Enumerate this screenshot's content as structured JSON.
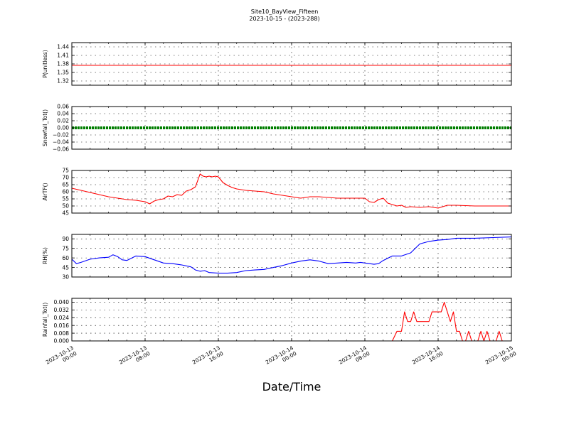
{
  "figure": {
    "title": "Site10_BayView_Fifteen",
    "subtitle": "2023-10-15 - (2023-288)",
    "xlabel": "Date/Time"
  },
  "chart_data": [
    {
      "type": "line",
      "ylabel": "P(unitless)",
      "ylim": [
        1.305,
        1.455
      ],
      "yticks": [
        "1.44",
        "1.41",
        "1.38",
        "1.35",
        "1.32"
      ],
      "ytick_values": [
        1.44,
        1.41,
        1.38,
        1.35,
        1.32
      ],
      "grid": true,
      "series": [
        {
          "color": "#ff0000",
          "marker": "line",
          "x": [
            "2023-10-13 00:00",
            "2023-10-15 00:00"
          ],
          "values": [
            1.375,
            1.375
          ]
        }
      ]
    },
    {
      "type": "line",
      "ylabel": "Snowfall_Tot()",
      "ylim": [
        -0.06,
        0.06
      ],
      "yticks": [
        "0.06",
        "0.04",
        "0.02",
        "0.00",
        "−0.02",
        "−0.04",
        "−0.06"
      ],
      "ytick_values": [
        0.06,
        0.04,
        0.02,
        0.0,
        -0.02,
        -0.04,
        -0.06
      ],
      "grid": true,
      "series": [
        {
          "color": "#007f00",
          "marker": "dots",
          "x": [
            "2023-10-13 00:00",
            "2023-10-15 00:00"
          ],
          "values": [
            0,
            0
          ]
        }
      ]
    },
    {
      "type": "line",
      "ylabel": "AirTF()",
      "ylim": [
        45,
        75
      ],
      "yticks": [
        "75",
        "70",
        "65",
        "60",
        "55",
        "50",
        "45"
      ],
      "ytick_values": [
        75,
        70,
        65,
        60,
        55,
        50,
        45
      ],
      "grid": true,
      "series": [
        {
          "color": "#ff0000",
          "marker": "line",
          "x": [
            "2023-10-13 00:00",
            "2023-10-13 01:00",
            "2023-10-13 02:00",
            "2023-10-13 03:00",
            "2023-10-13 04:00",
            "2023-10-13 05:00",
            "2023-10-13 06:00",
            "2023-10-13 07:00",
            "2023-10-13 08:00",
            "2023-10-13 08:30",
            "2023-10-13 09:00",
            "2023-10-13 09:30",
            "2023-10-13 10:00",
            "2023-10-13 10:30",
            "2023-10-13 11:00",
            "2023-10-13 11:30",
            "2023-10-13 12:00",
            "2023-10-13 12:30",
            "2023-10-13 13:00",
            "2023-10-13 13:30",
            "2023-10-13 14:00",
            "2023-10-13 14:20",
            "2023-10-13 14:40",
            "2023-10-13 15:00",
            "2023-10-13 15:20",
            "2023-10-13 15:40",
            "2023-10-13 16:00",
            "2023-10-13 16:30",
            "2023-10-13 17:00",
            "2023-10-13 17:30",
            "2023-10-13 18:00",
            "2023-10-13 19:00",
            "2023-10-13 20:00",
            "2023-10-13 21:00",
            "2023-10-13 22:00",
            "2023-10-14 00:00",
            "2023-10-14 01:00",
            "2023-10-14 02:00",
            "2023-10-14 03:00",
            "2023-10-14 04:00",
            "2023-10-14 05:00",
            "2023-10-14 06:00",
            "2023-10-14 07:00",
            "2023-10-14 08:00",
            "2023-10-14 08:30",
            "2023-10-14 09:00",
            "2023-10-14 09:30",
            "2023-10-14 10:00",
            "2023-10-14 10:30",
            "2023-10-14 11:00",
            "2023-10-14 11:30",
            "2023-10-14 12:00",
            "2023-10-14 12:30",
            "2023-10-14 13:00",
            "2023-10-14 14:00",
            "2023-10-14 15:00",
            "2023-10-14 16:00",
            "2023-10-14 17:00",
            "2023-10-14 18:00",
            "2023-10-14 20:00",
            "2023-10-14 22:00",
            "2023-10-15 00:00"
          ],
          "values": [
            62.5,
            61,
            59.5,
            58,
            56.5,
            55.5,
            54.5,
            54,
            53,
            51.5,
            53.5,
            54.5,
            55,
            57,
            56.5,
            58,
            57.5,
            60.5,
            61.5,
            63.5,
            72.5,
            71,
            70.5,
            71,
            70.5,
            71,
            70.5,
            66.5,
            64.5,
            63,
            62,
            61,
            60.5,
            60,
            58.5,
            56.5,
            55.5,
            56.5,
            56.5,
            56,
            55.5,
            55.5,
            55.5,
            55.5,
            53,
            52.5,
            54.5,
            55.5,
            52,
            51,
            50,
            50.5,
            49,
            49.5,
            49,
            49.5,
            48.5,
            50.5,
            50.5,
            50,
            50,
            50
          ]
        }
      ]
    },
    {
      "type": "line",
      "ylabel": "RH(%)",
      "ylim": [
        30,
        97
      ],
      "yticks": [
        "90",
        "75",
        "60",
        "45",
        "30"
      ],
      "ytick_values": [
        90,
        75,
        60,
        45,
        30
      ],
      "grid": true,
      "series": [
        {
          "color": "#0000ff",
          "marker": "line",
          "x": [
            "2023-10-13 00:00",
            "2023-10-13 00:30",
            "2023-10-13 01:00",
            "2023-10-13 02:00",
            "2023-10-13 03:00",
            "2023-10-13 04:00",
            "2023-10-13 04:30",
            "2023-10-13 05:00",
            "2023-10-13 05:30",
            "2023-10-13 06:00",
            "2023-10-13 07:00",
            "2023-10-13 08:00",
            "2023-10-13 09:00",
            "2023-10-13 10:00",
            "2023-10-13 11:00",
            "2023-10-13 12:00",
            "2023-10-13 13:00",
            "2023-10-13 13:30",
            "2023-10-13 14:00",
            "2023-10-13 14:30",
            "2023-10-13 15:00",
            "2023-10-13 16:00",
            "2023-10-13 17:00",
            "2023-10-13 18:00",
            "2023-10-13 19:00",
            "2023-10-13 20:00",
            "2023-10-13 21:00",
            "2023-10-13 22:00",
            "2023-10-13 23:00",
            "2023-10-14 00:00",
            "2023-10-14 01:00",
            "2023-10-14 02:00",
            "2023-10-14 03:00",
            "2023-10-14 04:00",
            "2023-10-14 05:00",
            "2023-10-14 06:00",
            "2023-10-14 07:00",
            "2023-10-14 07:30",
            "2023-10-14 08:00",
            "2023-10-14 09:00",
            "2023-10-14 09:30",
            "2023-10-14 10:00",
            "2023-10-14 11:00",
            "2023-10-14 12:00",
            "2023-10-14 13:00",
            "2023-10-14 14:00",
            "2023-10-14 15:00",
            "2023-10-14 16:00",
            "2023-10-14 17:00",
            "2023-10-14 18:00",
            "2023-10-14 20:00",
            "2023-10-14 22:00",
            "2023-10-15 00:00"
          ],
          "values": [
            58,
            51,
            53,
            58,
            60,
            61,
            65,
            62,
            57,
            56,
            63,
            62,
            57,
            52,
            51,
            49,
            46,
            41,
            39,
            40,
            37,
            36,
            36,
            37,
            40,
            41,
            42,
            45,
            48,
            52,
            55,
            57,
            55,
            51,
            52,
            53,
            52,
            53,
            52,
            50,
            51,
            56,
            63,
            63,
            68,
            82,
            86,
            88,
            89,
            91,
            91,
            92,
            93
          ]
        }
      ]
    },
    {
      "type": "line",
      "ylabel": "Rainfall_Tot()",
      "ylim": [
        0,
        0.044
      ],
      "yticks": [
        "0.040",
        "0.032",
        "0.024",
        "0.016",
        "0.008",
        "0.000"
      ],
      "ytick_values": [
        0.04,
        0.032,
        0.024,
        0.016,
        0.008,
        0.0
      ],
      "grid": true,
      "series": [
        {
          "color": "#ff0000",
          "marker": "line",
          "x": [
            "2023-10-13 00:00",
            "2023-10-14 11:00",
            "2023-10-14 11:30",
            "2023-10-14 12:00",
            "2023-10-14 12:20",
            "2023-10-14 12:40",
            "2023-10-14 13:00",
            "2023-10-14 13:20",
            "2023-10-14 13:40",
            "2023-10-14 14:00",
            "2023-10-14 14:20",
            "2023-10-14 14:40",
            "2023-10-14 15:00",
            "2023-10-14 15:20",
            "2023-10-14 15:40",
            "2023-10-14 16:00",
            "2023-10-14 16:20",
            "2023-10-14 16:40",
            "2023-10-14 17:00",
            "2023-10-14 17:20",
            "2023-10-14 17:40",
            "2023-10-14 18:00",
            "2023-10-14 18:20",
            "2023-10-14 18:40",
            "2023-10-14 19:00",
            "2023-10-14 19:20",
            "2023-10-14 19:40",
            "2023-10-14 20:00",
            "2023-10-14 20:20",
            "2023-10-14 20:40",
            "2023-10-14 21:00",
            "2023-10-14 21:20",
            "2023-10-14 21:40",
            "2023-10-14 22:00",
            "2023-10-14 22:20",
            "2023-10-14 22:40",
            "2023-10-14 23:00",
            "2023-10-14 23:20",
            "2023-10-15 00:00"
          ],
          "values": [
            0,
            0,
            0.01,
            0.01,
            0.03,
            0.02,
            0.02,
            0.03,
            0.02,
            0.02,
            0.02,
            0.02,
            0.02,
            0.03,
            0.03,
            0.03,
            0.03,
            0.04,
            0.03,
            0.02,
            0.03,
            0.01,
            0.01,
            0,
            0,
            0.01,
            0,
            0,
            0,
            0.01,
            0,
            0.01,
            0,
            0,
            0,
            0.01,
            0,
            0,
            0
          ]
        }
      ]
    }
  ],
  "xaxis": {
    "range": [
      "2023-10-13 00:00",
      "2023-10-15 00:00"
    ],
    "major_ticks": [
      {
        "value": "2023-10-13 00:00",
        "label1": "2023-10-13",
        "label2": "00:00"
      },
      {
        "value": "2023-10-13 08:00",
        "label1": "2023-10-13",
        "label2": "08:00"
      },
      {
        "value": "2023-10-13 16:00",
        "label1": "2023-10-13",
        "label2": "16:00"
      },
      {
        "value": "2023-10-14 00:00",
        "label1": "2023-10-14",
        "label2": "00:00"
      },
      {
        "value": "2023-10-14 08:00",
        "label1": "2023-10-14",
        "label2": "08:00"
      },
      {
        "value": "2023-10-14 16:00",
        "label1": "2023-10-14",
        "label2": "16:00"
      },
      {
        "value": "2023-10-15 00:00",
        "label1": "2023-10-15",
        "label2": "00:00"
      }
    ]
  }
}
